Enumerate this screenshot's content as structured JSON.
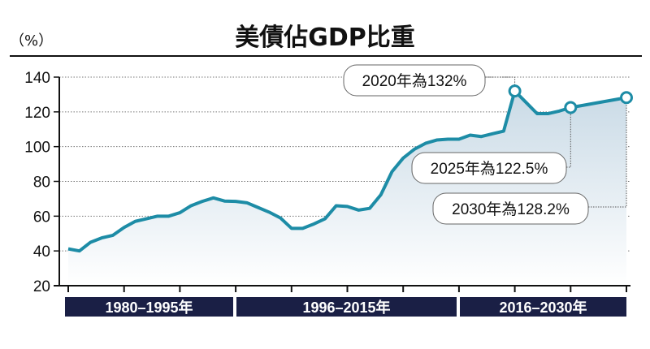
{
  "chart_data": {
    "type": "area",
    "title": "美債佔GDP比重",
    "ylabel": "（%）",
    "xlabel": "",
    "ylim": [
      20,
      140
    ],
    "yticks": [
      20,
      40,
      60,
      80,
      100,
      120,
      140
    ],
    "xlim": [
      1980,
      2030
    ],
    "grid": true,
    "colors": {
      "line": "#1d8ca6",
      "fill_top": "#c9dae6",
      "fill_bottom": "#ffffff",
      "period_bar": "#1a1f45"
    },
    "series": [
      {
        "x": [
          1980,
          1981,
          1982,
          1983,
          1984,
          1985,
          1986,
          1987,
          1988,
          1989,
          1990,
          1991,
          1992,
          1993,
          1994,
          1995,
          1996,
          1997,
          1998,
          1999,
          2000,
          2001,
          2002,
          2003,
          2004,
          2005,
          2006,
          2007,
          2008,
          2009,
          2010,
          2011,
          2012,
          2013,
          2014,
          2015,
          2016,
          2017,
          2018,
          2019,
          2020,
          2021,
          2022,
          2023,
          2024,
          2025,
          2030
        ],
        "values": [
          41.2,
          40,
          45,
          47.5,
          49,
          53.5,
          57,
          58.5,
          60,
          60,
          62,
          66,
          68.5,
          70.5,
          68.7,
          68.5,
          67.7,
          65,
          62.3,
          59,
          53,
          53,
          55.5,
          58.5,
          66,
          65.6,
          63.5,
          64.5,
          72.3,
          85.6,
          93.4,
          98.5,
          101.9,
          103.8,
          104.3,
          104.3,
          106.6,
          105.8,
          107.4,
          108.9,
          132,
          125.5,
          119,
          119,
          120.5,
          122.5,
          128.2
        ]
      }
    ],
    "annotations": [
      {
        "x": 2020,
        "y": 132,
        "text": "2020年為132%"
      },
      {
        "x": 2025,
        "y": 122.5,
        "text": "2025年為122.5%"
      },
      {
        "x": 2030,
        "y": 128.2,
        "text": "2030年為128.2%"
      }
    ],
    "periods": [
      {
        "from": 1980,
        "to": 1995,
        "label": "1980–1995年"
      },
      {
        "from": 1996,
        "to": 2015,
        "label": "1996–2015年"
      },
      {
        "from": 2016,
        "to": 2030,
        "label": "2016–2030年"
      }
    ]
  }
}
